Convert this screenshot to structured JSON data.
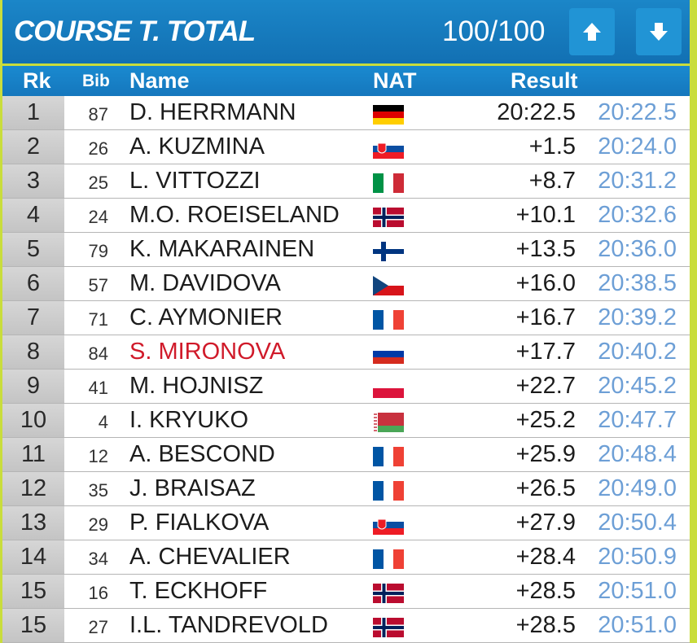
{
  "header": {
    "title": "COURSE T. TOTAL",
    "counter": "100/100",
    "up_icon": "arrow-up-icon",
    "down_icon": "arrow-down-icon"
  },
  "columns": {
    "rank": "Rk",
    "bib": "Bib",
    "name": "Name",
    "nat": "NAT",
    "result": "Result"
  },
  "colors": {
    "header_blue": "#1578bd",
    "frame_green": "#c9dd3c",
    "highlight_red": "#d01a2a",
    "time_blue": "#6d9fd6"
  },
  "rows": [
    {
      "rank": "1",
      "bib": "87",
      "name": "D. HERRMANN",
      "nat": "GER",
      "result": "20:22.5",
      "time": "20:22.5",
      "highlight": false
    },
    {
      "rank": "2",
      "bib": "26",
      "name": "A. KUZMINA",
      "nat": "SVK",
      "result": "+1.5",
      "time": "20:24.0",
      "highlight": false
    },
    {
      "rank": "3",
      "bib": "25",
      "name": "L. VITTOZZI",
      "nat": "ITA",
      "result": "+8.7",
      "time": "20:31.2",
      "highlight": false
    },
    {
      "rank": "4",
      "bib": "24",
      "name": "M.O. ROEISELAND",
      "nat": "NOR",
      "result": "+10.1",
      "time": "20:32.6",
      "highlight": false
    },
    {
      "rank": "5",
      "bib": "79",
      "name": "K. MAKARAINEN",
      "nat": "FIN",
      "result": "+13.5",
      "time": "20:36.0",
      "highlight": false
    },
    {
      "rank": "6",
      "bib": "57",
      "name": "M. DAVIDOVA",
      "nat": "CZE",
      "result": "+16.0",
      "time": "20:38.5",
      "highlight": false
    },
    {
      "rank": "7",
      "bib": "71",
      "name": "C. AYMONIER",
      "nat": "FRA",
      "result": "+16.7",
      "time": "20:39.2",
      "highlight": false
    },
    {
      "rank": "8",
      "bib": "84",
      "name": "S. MIRONOVA",
      "nat": "RUS",
      "result": "+17.7",
      "time": "20:40.2",
      "highlight": true
    },
    {
      "rank": "9",
      "bib": "41",
      "name": "M. HOJNISZ",
      "nat": "POL",
      "result": "+22.7",
      "time": "20:45.2",
      "highlight": false
    },
    {
      "rank": "10",
      "bib": "4",
      "name": "I. KRYUKO",
      "nat": "BLR",
      "result": "+25.2",
      "time": "20:47.7",
      "highlight": false
    },
    {
      "rank": "11",
      "bib": "12",
      "name": "A. BESCOND",
      "nat": "FRA",
      "result": "+25.9",
      "time": "20:48.4",
      "highlight": false
    },
    {
      "rank": "12",
      "bib": "35",
      "name": "J. BRAISAZ",
      "nat": "FRA",
      "result": "+26.5",
      "time": "20:49.0",
      "highlight": false
    },
    {
      "rank": "13",
      "bib": "29",
      "name": "P. FIALKOVA",
      "nat": "SVK",
      "result": "+27.9",
      "time": "20:50.4",
      "highlight": false
    },
    {
      "rank": "14",
      "bib": "34",
      "name": "A. CHEVALIER",
      "nat": "FRA",
      "result": "+28.4",
      "time": "20:50.9",
      "highlight": false
    },
    {
      "rank": "15",
      "bib": "16",
      "name": "T. ECKHOFF",
      "nat": "NOR",
      "result": "+28.5",
      "time": "20:51.0",
      "highlight": false
    },
    {
      "rank": "15",
      "bib": "27",
      "name": "I.L. TANDREVOLD",
      "nat": "NOR",
      "result": "+28.5",
      "time": "20:51.0",
      "highlight": false
    }
  ]
}
